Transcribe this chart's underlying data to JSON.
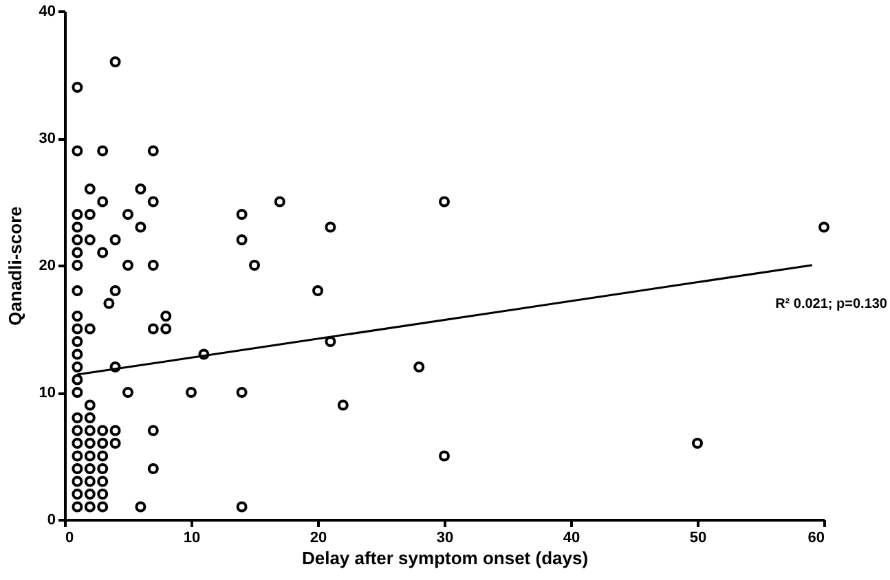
{
  "chart_data": {
    "type": "scatter",
    "xlabel": "Delay after symptom onset (days)",
    "ylabel": "Qanadli-score",
    "xlim": [
      0,
      60
    ],
    "xticks": [
      0,
      10,
      20,
      30,
      40,
      50,
      60
    ],
    "ylim": [
      0,
      40
    ],
    "yticks": [
      0,
      10,
      20,
      30,
      40
    ],
    "grid": false,
    "series": [
      {
        "marker": "circle",
        "color": "#000000",
        "x": [
          4,
          1,
          1,
          3,
          7,
          2,
          6,
          3,
          7,
          1,
          2,
          5,
          1,
          6,
          1,
          2,
          4,
          1,
          3,
          1,
          5,
          7,
          1,
          4,
          3.5,
          1,
          8,
          1,
          2,
          7,
          8,
          1,
          1,
          11,
          1,
          4,
          1,
          1,
          5,
          10,
          2,
          1,
          2,
          1,
          2,
          3,
          4,
          7,
          1,
          2,
          3,
          4,
          1,
          2,
          3,
          1,
          2,
          3,
          7,
          1,
          2,
          3,
          1,
          2,
          3,
          1,
          2,
          3,
          6,
          14,
          17,
          30,
          14,
          21,
          15,
          20,
          21,
          28,
          14,
          22,
          30,
          14,
          60,
          50
        ],
        "values": [
          36,
          34,
          29,
          29,
          29,
          26,
          26,
          25,
          25,
          24,
          24,
          24,
          23,
          23,
          22,
          22,
          22,
          21,
          21,
          20,
          20,
          20,
          18,
          18,
          17,
          16,
          16,
          15,
          15,
          15,
          15,
          14,
          13,
          13,
          12,
          12,
          11,
          10,
          10,
          10,
          9,
          8,
          8,
          7,
          7,
          7,
          7,
          7,
          6,
          6,
          6,
          6,
          5,
          5,
          5,
          4,
          4,
          4,
          4,
          3,
          3,
          3,
          2,
          2,
          2,
          1,
          1,
          1,
          1,
          24,
          25,
          25,
          22,
          23,
          20,
          18,
          14,
          12,
          10,
          9,
          5,
          1,
          23,
          6
        ]
      },
      {
        "type": "line",
        "color": "#000000",
        "line_style": "solid",
        "x": [
          1,
          59
        ],
        "values": [
          11.4,
          20.0
        ]
      }
    ],
    "annotations": [
      "R² 0.021; p=0.130"
    ]
  }
}
